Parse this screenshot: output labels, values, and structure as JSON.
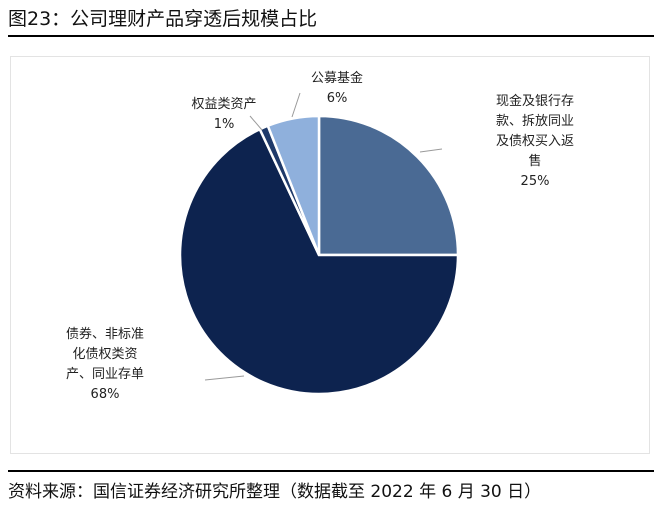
{
  "figure": {
    "title": "图23：公司理财产品穿透后规模占比",
    "source": "资料来源：国信证券经济研究所整理（数据截至 2022 年 6 月 30 日）"
  },
  "chart_data": {
    "type": "pie",
    "title": "",
    "start_angle_deg": 0,
    "direction": "clockwise",
    "legend": "none",
    "slices": [
      {
        "name": "现金及银行存款、拆放同业及债权买入返售",
        "lines": [
          "现金及银行存",
          "款、拆放同业",
          "及债权买入返",
          "售"
        ],
        "value": 25,
        "label": "25%",
        "color": "#4a6a94"
      },
      {
        "name": "债券、非标准化债权类资产、同业存单",
        "lines": [
          "债券、非标准",
          "化债权类资",
          "产、同业存单"
        ],
        "value": 68,
        "label": "68%",
        "color": "#0d234f"
      },
      {
        "name": "权益类资产",
        "lines": [
          "权益类资产"
        ],
        "value": 1,
        "label": "1%",
        "color": "#1f3a6a"
      },
      {
        "name": "公募基金",
        "lines": [
          "公募基金"
        ],
        "value": 6,
        "label": "6%",
        "color": "#8fb0dc"
      }
    ]
  }
}
